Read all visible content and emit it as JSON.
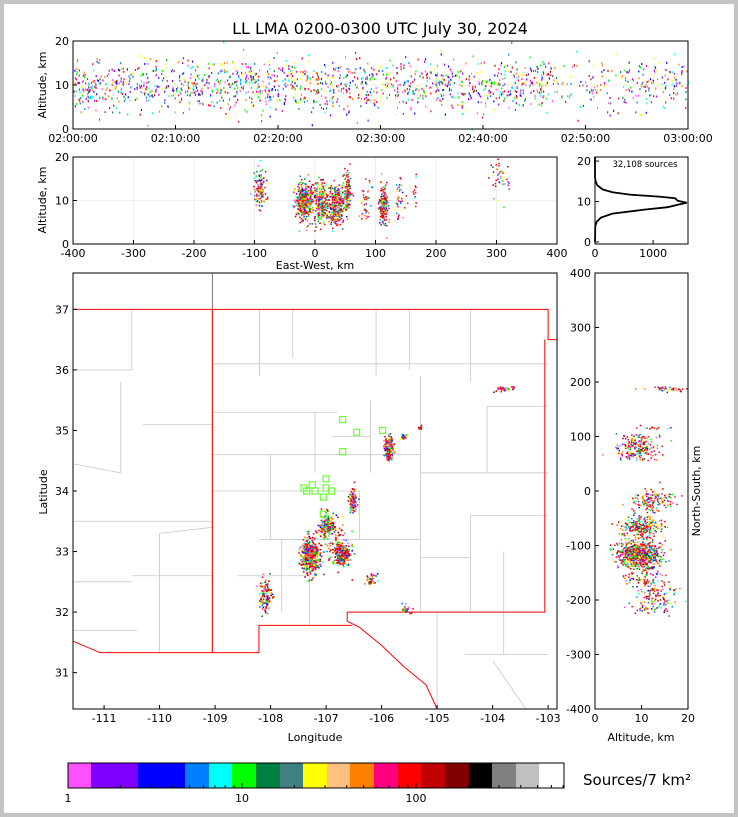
{
  "title": "LL LMA 0200-0300 UTC July 30, 2024",
  "colors": {
    "state_border": "#ff0000",
    "county": "#c8c8c8",
    "station": "#66ff33"
  },
  "chart_data": [
    {
      "type": "scatter",
      "name": "altitude-time",
      "ylabel": "Altitude, km",
      "ylim": [
        0,
        20
      ],
      "yticks": [
        "0",
        "10",
        "20"
      ],
      "xlim": [
        "02:00:00",
        "03:00:00"
      ],
      "xticks": [
        "02:00:00",
        "02:10:00",
        "02:20:00",
        "02:30:00",
        "02:40:00",
        "02:50:00",
        "03:00:00"
      ],
      "alt_mean_km": 10,
      "alt_spread_km": 3
    },
    {
      "type": "scatter",
      "name": "altitude-eastwest",
      "xlabel": "East-West, km",
      "ylabel": "Altitude, km",
      "xlim": [
        -400,
        400
      ],
      "ylim": [
        0,
        20
      ],
      "xticks": [
        "-400",
        "-300",
        "-200",
        "-100",
        "0",
        "100",
        "200",
        "300",
        "400"
      ],
      "yticks": [
        "0",
        "10",
        "20"
      ]
    },
    {
      "type": "line",
      "name": "altitude-histogram",
      "annotation": "32,108 sources",
      "xlim": [
        0,
        1600
      ],
      "ylim": [
        -0.5,
        21
      ],
      "xticks": [
        "0",
        "1000"
      ],
      "yticks": [
        "0",
        "10",
        "20"
      ],
      "profile": [
        [
          0,
          0
        ],
        [
          4,
          5
        ],
        [
          5,
          30
        ],
        [
          6,
          100
        ],
        [
          7,
          300
        ],
        [
          8,
          850
        ],
        [
          8.6,
          1250
        ],
        [
          9.3,
          1450
        ],
        [
          9.7,
          1580
        ],
        [
          10.2,
          1420
        ],
        [
          10.8,
          1380
        ],
        [
          11.2,
          1100
        ],
        [
          11.7,
          600
        ],
        [
          12.3,
          300
        ],
        [
          13,
          130
        ],
        [
          14,
          40
        ],
        [
          15,
          10
        ],
        [
          16,
          0
        ],
        [
          21,
          0
        ]
      ]
    },
    {
      "type": "scatter",
      "name": "plan-view-map",
      "xlabel": "Longitude",
      "ylabel": "Latitude",
      "xlim": [
        -111.56,
        -102.84
      ],
      "ylim": [
        30.4,
        37.6
      ],
      "xticks": [
        "-111",
        "-110",
        "-109",
        "-108",
        "-107",
        "-106",
        "-105",
        "-104",
        "-103"
      ],
      "yticks": [
        "31",
        "32",
        "33",
        "34",
        "35",
        "36",
        "37"
      ],
      "clusters": [
        {
          "lon": -107.3,
          "lat": 32.95,
          "sx": 0.08,
          "sy": 0.15,
          "n": 420,
          "alt": 10
        },
        {
          "lon": -107.0,
          "lat": 33.45,
          "sx": 0.06,
          "sy": 0.08,
          "n": 200,
          "alt": 10
        },
        {
          "lon": -106.72,
          "lat": 32.97,
          "sx": 0.07,
          "sy": 0.08,
          "n": 250,
          "alt": 9
        },
        {
          "lon": -106.53,
          "lat": 33.85,
          "sx": 0.03,
          "sy": 0.08,
          "n": 150,
          "alt": 12
        },
        {
          "lon": -105.88,
          "lat": 34.72,
          "sx": 0.04,
          "sy": 0.1,
          "n": 220,
          "alt": 9
        },
        {
          "lon": -108.1,
          "lat": 32.3,
          "sx": 0.06,
          "sy": 0.15,
          "n": 120,
          "alt": 13
        },
        {
          "lon": -106.2,
          "lat": 32.55,
          "sx": 0.05,
          "sy": 0.05,
          "n": 40,
          "alt": 10
        },
        {
          "lon": -105.55,
          "lat": 32.06,
          "sx": 0.04,
          "sy": 0.03,
          "n": 20,
          "alt": 11
        },
        {
          "lon": -105.62,
          "lat": 34.9,
          "sx": 0.03,
          "sy": 0.02,
          "n": 20,
          "alt": 10
        },
        {
          "lon": -105.3,
          "lat": 35.05,
          "sx": 0.02,
          "sy": 0.02,
          "n": 12,
          "alt": 11
        },
        {
          "lon": -103.8,
          "lat": 35.7,
          "sx": 0.1,
          "sy": 0.02,
          "n": 40,
          "alt": 15
        },
        {
          "lon": -106.85,
          "lat": 33.15,
          "sx": 0.12,
          "sy": 0.2,
          "n": 100,
          "alt": 8
        }
      ],
      "stations": [
        [
          -106.7,
          35.18
        ],
        [
          -106.45,
          34.97
        ],
        [
          -105.98,
          35.0
        ],
        [
          -106.7,
          34.65
        ],
        [
          -107.0,
          34.2
        ],
        [
          -107.0,
          34.05
        ],
        [
          -107.2,
          34.0
        ],
        [
          -107.35,
          34.0
        ],
        [
          -107.4,
          34.05
        ],
        [
          -107.25,
          34.1
        ],
        [
          -106.9,
          34.0
        ],
        [
          -107.05,
          33.9
        ],
        [
          -107.05,
          33.62
        ]
      ]
    },
    {
      "type": "scatter",
      "name": "altitude-northsouth",
      "xlabel": "Altitude, km",
      "ylabel": "North-South, km",
      "xlim": [
        0,
        20
      ],
      "ylim": [
        -400,
        400
      ],
      "xticks": [
        "0",
        "10",
        "20"
      ],
      "yticks": [
        "-400",
        "-300",
        "-200",
        "-100",
        "0",
        "100",
        "200",
        "300",
        "400"
      ]
    },
    {
      "type": "colorbar",
      "label": "Sources/7 km²",
      "scale": "log",
      "tick_labels": [
        "1",
        "10",
        "100"
      ],
      "colors": [
        "#ff50ff",
        "#8000ff",
        "#0000ff",
        "#0080ff",
        "#00ffff",
        "#00ff00",
        "#008040",
        "#408080",
        "#ffff00",
        "#ffc080",
        "#ff8000",
        "#ff0080",
        "#ff0000",
        "#c00000",
        "#800000",
        "#000000",
        "#808080",
        "#c0c0c0",
        "#ffffff"
      ]
    }
  ]
}
